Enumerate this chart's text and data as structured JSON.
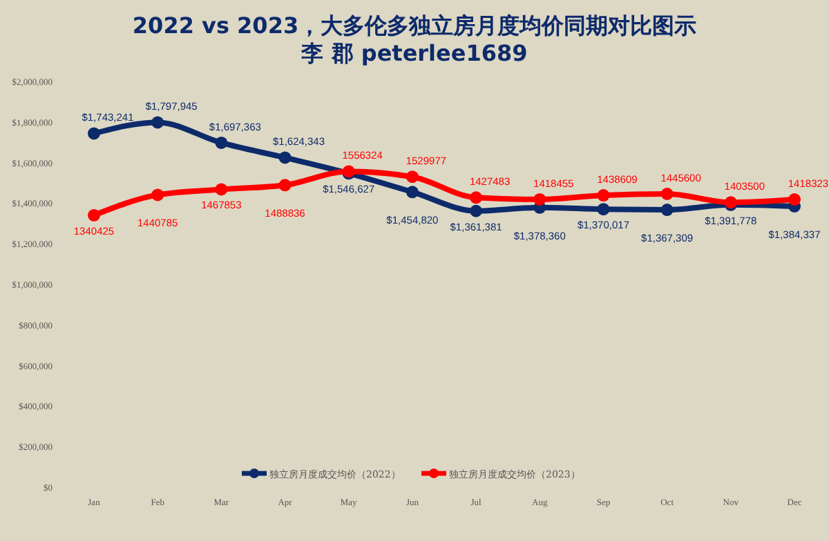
{
  "chart_data": {
    "type": "line",
    "title": "2022 vs 2023，大多伦多独立房月度均价同期对比图示",
    "subtitle": "李 郡 peterlee1689",
    "categories": [
      "Jan",
      "Feb",
      "Mar",
      "Apr",
      "May",
      "Jun",
      "Jul",
      "Aug",
      "Sep",
      "Oct",
      "Nov",
      "Dec"
    ],
    "series": [
      {
        "name": "独立房月度成交均价（2022）",
        "color": "#0d2a6b",
        "values": [
          1743241,
          1797945,
          1697363,
          1624343,
          1546627,
          1454820,
          1361381,
          1378360,
          1370017,
          1367309,
          1391778,
          1384337
        ],
        "value_labels": [
          "$1,743,241",
          "$1,797,945",
          "$1,697,363",
          "$1,624,343",
          "$1,546,627",
          "$1,454,820",
          "$1,361,381",
          "$1,378,360",
          "$1,370,017",
          "$1,367,309",
          "$1,391,778",
          "$1,384,337"
        ]
      },
      {
        "name": "独立房月度成交均价（2023）",
        "color": "#ff0000",
        "values": [
          1340425,
          1440785,
          1467853,
          1488836,
          1556324,
          1529977,
          1427483,
          1418455,
          1438609,
          1445600,
          1403500,
          1418323
        ],
        "value_labels": [
          "1340425",
          "1440785",
          "1467853",
          "1488836",
          "1556324",
          "1529977",
          "1427483",
          "1418455",
          "1438609",
          "1445600",
          "1403500",
          "1418323"
        ]
      }
    ],
    "ylim": [
      0,
      2000000
    ],
    "yticks": [
      {
        "value": 0,
        "label": "$0"
      },
      {
        "value": 200000,
        "label": "$200,000"
      },
      {
        "value": 400000,
        "label": "$400,000"
      },
      {
        "value": 600000,
        "label": "$600,000"
      },
      {
        "value": 800000,
        "label": "$800,000"
      },
      {
        "value": 1000000,
        "label": "$1,000,000"
      },
      {
        "value": 1200000,
        "label": "$1,200,000"
      },
      {
        "value": 1400000,
        "label": "$1,400,000"
      },
      {
        "value": 1600000,
        "label": "$1,600,000"
      },
      {
        "value": 1800000,
        "label": "$1,800,000"
      },
      {
        "value": 2000000,
        "label": "$2,000,000"
      }
    ],
    "grid": false,
    "legend": "bottom",
    "marker": "circle",
    "line_style": "solid"
  }
}
